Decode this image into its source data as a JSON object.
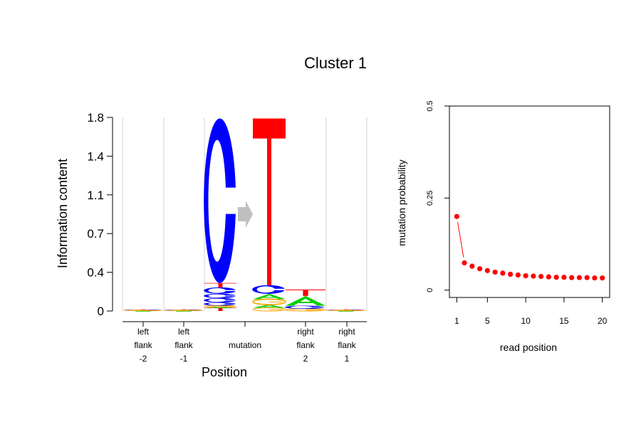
{
  "title": "Cluster 1",
  "colors": {
    "A": "#00cc00",
    "C": "#0000ff",
    "G": "#ffa500",
    "T": "#ff0000",
    "arrow": "#c0c0c0",
    "separator": "#d3d3d3"
  },
  "chart_data": [
    {
      "type": "sequence-logo",
      "ylabel": "Information content",
      "xlabel": "Position",
      "yticks": [
        "0",
        "0.4",
        "0.7",
        "1.1",
        "1.4",
        "1.8"
      ],
      "ytick_values": [
        0,
        0.36,
        0.72,
        1.08,
        1.44,
        1.8
      ],
      "ylim": [
        0,
        1.8
      ],
      "positions": [
        {
          "label": [
            "left",
            "flank",
            "-2"
          ],
          "letters": [
            {
              "base": "A",
              "h": 0.004
            },
            {
              "base": "G",
              "h": 0.004
            },
            {
              "base": "C",
              "h": 0.004
            },
            {
              "base": "T",
              "h": 0.004
            }
          ]
        },
        {
          "label": [
            "left",
            "flank",
            "-1"
          ],
          "letters": [
            {
              "base": "A",
              "h": 0.004
            },
            {
              "base": "G",
              "h": 0.004
            },
            {
              "base": "C",
              "h": 0.004
            },
            {
              "base": "T",
              "h": 0.004
            }
          ]
        },
        {
          "label": [
            "mutation"
          ],
          "mutation": true,
          "from": [
            {
              "base": "T",
              "h": 0.03
            },
            {
              "base": "A",
              "h": 0.01
            },
            {
              "base": "G",
              "h": 0.01
            },
            {
              "base": "C",
              "h": 0.03
            },
            {
              "base": "C",
              "h": 0.04
            },
            {
              "base": "C",
              "h": 0.04
            },
            {
              "base": "C",
              "h": 0.06
            },
            {
              "base": "T",
              "h": 0.04
            },
            {
              "base": "C",
              "h": 1.53
            }
          ],
          "to": [
            {
              "base": "G",
              "h": 0.03
            },
            {
              "base": "A",
              "h": 0.03
            },
            {
              "base": "G",
              "h": 0.05
            },
            {
              "base": "A",
              "h": 0.05
            },
            {
              "base": "C",
              "h": 0.08
            },
            {
              "base": "T",
              "h": 1.55
            }
          ]
        },
        {
          "label": [
            "right",
            "flank",
            "2"
          ],
          "letters": [
            {
              "base": "G",
              "h": 0.02
            },
            {
              "base": "C",
              "h": 0.03
            },
            {
              "base": "A",
              "h": 0.09
            },
            {
              "base": "T",
              "h": 0.06
            }
          ]
        },
        {
          "label": [
            "right",
            "flank",
            "1"
          ],
          "letters": [
            {
              "base": "A",
              "h": 0.004
            },
            {
              "base": "G",
              "h": 0.004
            },
            {
              "base": "C",
              "h": 0.004
            },
            {
              "base": "T",
              "h": 0.004
            }
          ]
        }
      ]
    },
    {
      "type": "scatter",
      "xlabel": "read position",
      "ylabel": "mutation probability",
      "xticks": [
        1,
        5,
        10,
        15,
        20
      ],
      "yticks": [
        0,
        0.25,
        0.5
      ],
      "ytick_labels": [
        "0",
        "0.25",
        "0.5"
      ],
      "xlim": [
        0.04,
        20.96
      ],
      "ylim": [
        -0.02,
        0.5
      ],
      "x": [
        1,
        2,
        3,
        4,
        5,
        6,
        7,
        8,
        9,
        10,
        11,
        12,
        13,
        14,
        15,
        16,
        17,
        18,
        19,
        20
      ],
      "y": [
        0.2,
        0.074,
        0.065,
        0.058,
        0.053,
        0.049,
        0.046,
        0.043,
        0.041,
        0.039,
        0.038,
        0.037,
        0.036,
        0.035,
        0.035,
        0.034,
        0.034,
        0.034,
        0.033,
        0.033
      ],
      "color": "#ff0000",
      "connect_first_two": true
    }
  ]
}
